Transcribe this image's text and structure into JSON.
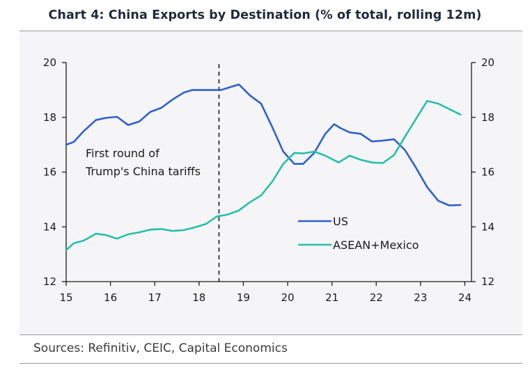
{
  "chart_data": {
    "type": "line",
    "title": "Chart 4: China Exports by Destination (% of total, rolling 12m)",
    "source": "Sources: Refinitiv, CEIC, Capital Economics",
    "x_ticks": [
      15,
      16,
      17,
      18,
      19,
      20,
      21,
      22,
      23,
      24
    ],
    "x_tick_labels": [
      "15",
      "16",
      "17",
      "18",
      "19",
      "20",
      "21",
      "22",
      "23",
      "24"
    ],
    "xlim": [
      15,
      24.15
    ],
    "ylim": [
      12,
      20
    ],
    "y_ticks": [
      12,
      14,
      16,
      18,
      20
    ],
    "y_tick_labels": [
      "12",
      "14",
      "16",
      "18",
      "20"
    ],
    "y2_tick_labels": [
      "12",
      "14",
      "16",
      "18",
      "20"
    ],
    "grid": false,
    "legend_position": "right-middle",
    "annotation": {
      "x": 18.45,
      "lines": [
        "First round of",
        "Trump's China tariffs"
      ],
      "style": "dashed-vertical"
    },
    "series": [
      {
        "name": "US",
        "color": "#2f5fcf",
        "x": [
          15,
          15.17,
          15.4,
          15.67,
          15.9,
          16.15,
          16.4,
          16.65,
          16.9,
          17.15,
          17.4,
          17.65,
          17.85,
          18.0,
          18.3,
          18.5,
          18.7,
          18.9,
          19.15,
          19.4,
          19.65,
          19.9,
          20.15,
          20.35,
          20.6,
          20.85,
          21.05,
          21.2,
          21.4,
          21.65,
          21.9,
          22.15,
          22.4,
          22.65,
          22.9,
          23.15,
          23.4,
          23.65,
          23.9
        ],
        "y": [
          17.0,
          17.1,
          17.5,
          17.9,
          17.98,
          18.02,
          17.72,
          17.85,
          18.2,
          18.35,
          18.65,
          18.9,
          19.0,
          19.0,
          19.0,
          19.0,
          19.1,
          19.2,
          18.8,
          18.5,
          17.65,
          16.75,
          16.3,
          16.3,
          16.7,
          17.4,
          17.75,
          17.6,
          17.45,
          17.4,
          17.12,
          17.15,
          17.2,
          16.8,
          16.15,
          15.45,
          14.95,
          14.78,
          14.8
        ]
      },
      {
        "name": "ASEAN+Mexico",
        "color": "#27bfa8",
        "x": [
          15,
          15.17,
          15.4,
          15.67,
          15.9,
          16.15,
          16.4,
          16.65,
          16.9,
          17.15,
          17.4,
          17.65,
          17.9,
          18.15,
          18.4,
          18.65,
          18.9,
          19.15,
          19.4,
          19.65,
          19.9,
          20.15,
          20.35,
          20.6,
          20.85,
          21.15,
          21.4,
          21.65,
          21.9,
          22.15,
          22.4,
          22.65,
          22.9,
          23.15,
          23.4,
          23.65,
          23.9
        ],
        "y": [
          13.15,
          13.4,
          13.5,
          13.75,
          13.7,
          13.57,
          13.73,
          13.8,
          13.9,
          13.92,
          13.85,
          13.88,
          13.98,
          14.1,
          14.38,
          14.45,
          14.6,
          14.9,
          15.15,
          15.65,
          16.3,
          16.7,
          16.68,
          16.75,
          16.6,
          16.35,
          16.6,
          16.45,
          16.35,
          16.33,
          16.62,
          17.3,
          17.95,
          18.6,
          18.5,
          18.3,
          18.1
        ]
      }
    ]
  }
}
